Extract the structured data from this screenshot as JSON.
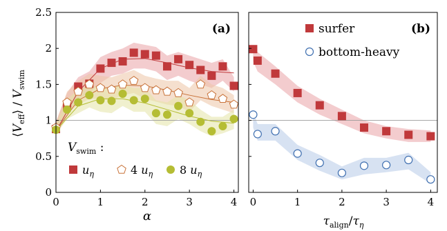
{
  "chart_data": [
    {
      "type": "scatter",
      "panel_label": "(a)",
      "xlabel": "α",
      "ylabel": "⟨V_eff⟩ / V_swim",
      "xlim": [
        0,
        4.1
      ],
      "ylim": [
        0,
        2.5
      ],
      "x_ticks": [
        "0",
        "1",
        "2",
        "3",
        "4"
      ],
      "y_ticks": [
        "0",
        "0.5",
        "1",
        "1.5",
        "2",
        "2.5"
      ],
      "reference_line_y": 1,
      "legend_title": "V_swim :",
      "legend_placement": "bottom-left",
      "series": [
        {
          "name": "u_η",
          "marker": "square",
          "color": "#c0393b",
          "band_color": "#e9a3a6",
          "x": [
            0,
            0.25,
            0.5,
            0.75,
            1.0,
            1.25,
            1.5,
            1.75,
            2.0,
            2.25,
            2.5,
            2.75,
            3.0,
            3.25,
            3.5,
            3.75,
            4.0
          ],
          "y": [
            0.88,
            1.2,
            1.47,
            1.51,
            1.72,
            1.8,
            1.82,
            1.94,
            1.92,
            1.9,
            1.75,
            1.85,
            1.77,
            1.7,
            1.62,
            1.75,
            1.48
          ],
          "band_lower": [
            0.8,
            1.05,
            1.3,
            1.38,
            1.52,
            1.62,
            1.65,
            1.72,
            1.72,
            1.68,
            1.56,
            1.62,
            1.55,
            1.5,
            1.45,
            1.55,
            1.4
          ],
          "band_upper": [
            0.98,
            1.38,
            1.6,
            1.68,
            1.88,
            1.95,
            2.0,
            2.08,
            2.05,
            2.02,
            1.9,
            1.95,
            1.9,
            1.85,
            1.8,
            1.85,
            1.6
          ],
          "fit_x": [
            0,
            0.5,
            1.0,
            1.5,
            2.0,
            2.5,
            3.0,
            3.5,
            4.0
          ],
          "fit_y": [
            0.85,
            1.4,
            1.72,
            1.85,
            1.86,
            1.8,
            1.73,
            1.68,
            1.66
          ]
        },
        {
          "name": "4 u_η",
          "marker": "pentagon-open",
          "color": "#c87137",
          "band_color": "#edc5a6",
          "x": [
            0,
            0.25,
            0.5,
            0.75,
            1.0,
            1.25,
            1.5,
            1.75,
            2.0,
            2.25,
            2.5,
            2.75,
            3.0,
            3.25,
            3.5,
            3.75,
            4.0
          ],
          "y": [
            0.9,
            1.25,
            1.4,
            1.5,
            1.45,
            1.43,
            1.5,
            1.55,
            1.45,
            1.42,
            1.4,
            1.38,
            1.25,
            1.5,
            1.35,
            1.3,
            1.22
          ],
          "band_lower": [
            0.82,
            1.1,
            1.22,
            1.3,
            1.3,
            1.28,
            1.35,
            1.38,
            1.3,
            1.26,
            1.22,
            1.2,
            1.12,
            1.28,
            1.2,
            1.15,
            1.1
          ],
          "band_upper": [
            0.98,
            1.4,
            1.55,
            1.65,
            1.62,
            1.6,
            1.65,
            1.7,
            1.62,
            1.58,
            1.55,
            1.55,
            1.45,
            1.62,
            1.5,
            1.45,
            1.35
          ],
          "fit_x": [
            0,
            0.5,
            1.0,
            1.5,
            2.0,
            2.5,
            3.0,
            3.5,
            4.0
          ],
          "fit_y": [
            0.86,
            1.28,
            1.44,
            1.49,
            1.48,
            1.42,
            1.35,
            1.29,
            1.25
          ]
        },
        {
          "name": "8 u_η",
          "marker": "circle",
          "color": "#b5bd34",
          "band_color": "#e3e3a6",
          "x": [
            0,
            0.25,
            0.5,
            0.75,
            1.0,
            1.25,
            1.5,
            1.75,
            2.0,
            2.25,
            2.5,
            2.75,
            3.0,
            3.25,
            3.5,
            3.75,
            4.0
          ],
          "y": [
            0.87,
            1.15,
            1.25,
            1.35,
            1.28,
            1.27,
            1.37,
            1.28,
            1.3,
            1.1,
            1.08,
            1.2,
            1.1,
            0.98,
            0.85,
            0.92,
            1.02
          ],
          "band_lower": [
            0.8,
            1.02,
            1.1,
            1.18,
            1.12,
            1.1,
            1.2,
            1.12,
            1.12,
            0.95,
            0.92,
            1.02,
            0.95,
            0.85,
            0.78,
            0.82,
            0.88
          ],
          "band_upper": [
            0.95,
            1.3,
            1.42,
            1.5,
            1.45,
            1.45,
            1.5,
            1.45,
            1.45,
            1.28,
            1.25,
            1.35,
            1.28,
            1.15,
            1.05,
            1.05,
            1.15
          ],
          "fit_x": [
            0,
            0.5,
            1.0,
            1.5,
            2.0,
            2.5,
            3.0,
            3.5,
            4.0
          ],
          "fit_y": [
            0.86,
            1.2,
            1.3,
            1.3,
            1.24,
            1.15,
            1.06,
            0.99,
            0.96
          ]
        }
      ]
    },
    {
      "type": "scatter",
      "panel_label": "(b)",
      "xlabel": "τ_align / τ_η",
      "xlim": [
        -0.1,
        4.15
      ],
      "ylim": [
        0,
        2.5
      ],
      "x_ticks": [
        "0",
        "1",
        "2",
        "3",
        "4"
      ],
      "reference_line_y": 1,
      "legend_placement": "top-right",
      "series": [
        {
          "name": "surfer",
          "marker": "square",
          "color": "#c0393b",
          "band_color": "#e9a3a6",
          "x": [
            0,
            0.1,
            0.5,
            1.0,
            1.5,
            2.0,
            2.5,
            3.0,
            3.5,
            4.0
          ],
          "y": [
            1.99,
            1.83,
            1.65,
            1.38,
            1.21,
            1.06,
            0.9,
            0.85,
            0.8,
            0.78
          ],
          "band_lower": [
            1.82,
            1.68,
            1.5,
            1.25,
            1.08,
            0.95,
            0.82,
            0.75,
            0.7,
            0.7
          ],
          "band_upper": [
            2.05,
            1.95,
            1.75,
            1.48,
            1.3,
            1.15,
            1.0,
            0.92,
            0.88,
            0.86
          ]
        },
        {
          "name": "bottom-heavy",
          "marker": "circle-open",
          "color": "#3f6fb0",
          "band_color": "#b7cbe7",
          "x": [
            0,
            0.1,
            0.5,
            1.0,
            1.5,
            2.0,
            2.5,
            3.0,
            3.5,
            4.0
          ],
          "y": [
            1.08,
            0.81,
            0.85,
            0.54,
            0.41,
            0.27,
            0.37,
            0.38,
            0.45,
            0.18
          ],
          "band_lower": [
            0.9,
            0.72,
            0.72,
            0.45,
            0.3,
            0.18,
            0.25,
            0.28,
            0.32,
            0.12
          ],
          "band_upper": [
            1.12,
            0.95,
            0.95,
            0.66,
            0.52,
            0.36,
            0.48,
            0.48,
            0.55,
            0.28
          ]
        }
      ]
    }
  ]
}
